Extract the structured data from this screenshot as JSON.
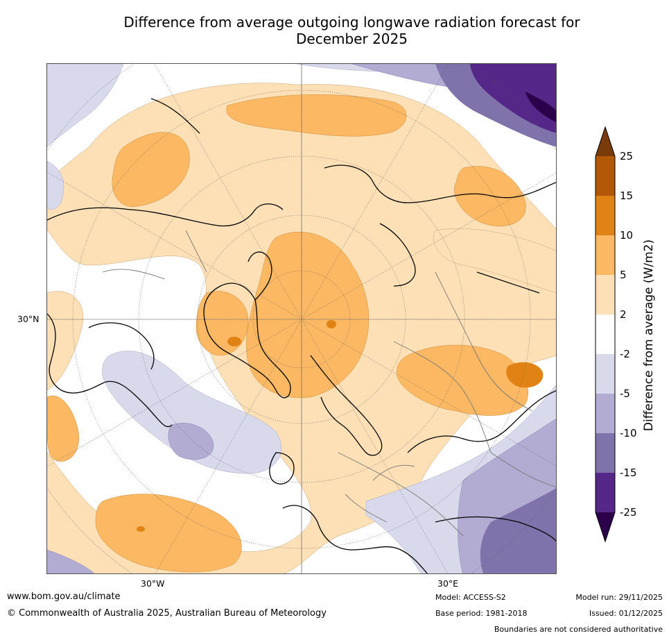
{
  "title_line1": "Difference from average outgoing longwave radiation forecast for",
  "title_line2": "December 2025",
  "map": {
    "projection": "north-polar-stereographic",
    "lat_label": "30°N",
    "lon_labels": [
      "30°W",
      "30°E"
    ]
  },
  "colorbar": {
    "title": "Difference from average (W/m2)",
    "ticks": [
      "25",
      "15",
      "10",
      "5",
      "2",
      "-2",
      "-5",
      "-10",
      "-15",
      "-25"
    ],
    "colors": {
      "over": "#7a3b0a",
      "b15_25": "#b35806",
      "b10_15": "#e08214",
      "b5_10": "#fdb863",
      "b2_5": "#fee0b6",
      "neutral": "#ffffff",
      "m2_m5": "#d8daeb",
      "m5_m10": "#b2abd2",
      "m10_m15": "#8073ac",
      "m15_m25": "#542788",
      "under": "#2d004b"
    }
  },
  "footer": {
    "website": "www.bom.gov.au/climate",
    "copyright": "© Commonwealth of Australia 2025, Australian Bureau of Meteorology",
    "model": "Model: ACCESS-S2",
    "base_period": "Base period: 1981-2018",
    "model_run": "Model run: 29/11/2025",
    "issued": "Issued: 01/12/2025",
    "disclaimer": "Boundaries are not considered authoritative"
  }
}
